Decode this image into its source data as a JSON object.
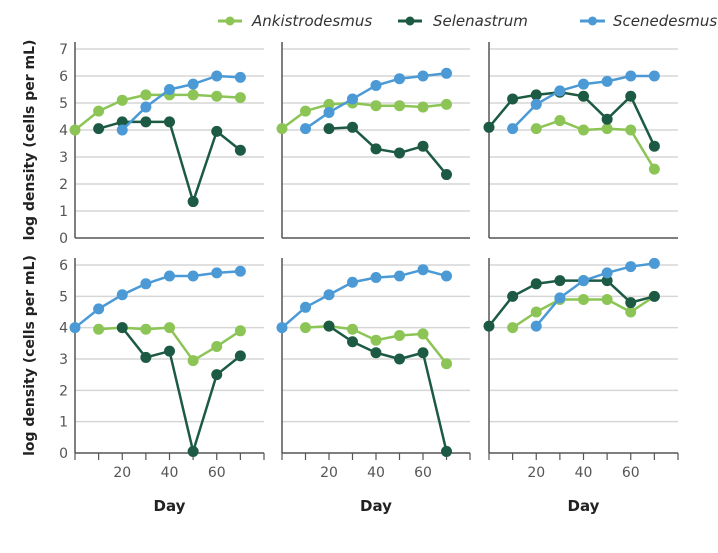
{
  "chart_data": {
    "type": "line",
    "layout": "2x3 small multiples",
    "legend": {
      "placement": "top",
      "entries": [
        "Ankistrodesmus",
        "Selenastrum",
        "Scenedesmus"
      ]
    },
    "colors": {
      "Ankistrodesmus": "#8cc556",
      "Selenastrum": "#1d5a44",
      "Scenedesmus": "#4b9ad5"
    },
    "xlabel": "Day",
    "ylabel": "log density (cells per mL)",
    "xlim": [
      0,
      80
    ],
    "xticks": [
      20,
      40,
      60
    ],
    "grid": "horizontal",
    "rows": [
      {
        "ylim": [
          0,
          7
        ],
        "yticks": [
          0,
          1,
          2,
          3,
          4,
          5,
          6,
          7
        ],
        "xlabel_shown": false
      },
      {
        "ylim": [
          0,
          6.2
        ],
        "yticks": [
          0,
          1,
          2,
          3,
          4,
          5,
          6
        ],
        "xlabel_shown": true
      }
    ],
    "panels": [
      {
        "row": 0,
        "col": 0,
        "series": [
          {
            "name": "Ankistrodesmus",
            "x": [
              0,
              10,
              20,
              30,
              40,
              50,
              60,
              70
            ],
            "y": [
              4.0,
              4.7,
              5.1,
              5.3,
              5.3,
              5.3,
              5.25,
              5.2
            ]
          },
          {
            "name": "Selenastrum",
            "x": [
              10,
              20,
              30,
              40,
              50,
              60,
              70
            ],
            "y": [
              4.05,
              4.3,
              4.3,
              4.3,
              1.35,
              3.95,
              3.25
            ]
          },
          {
            "name": "Scenedesmus",
            "x": [
              20,
              30,
              40,
              50,
              60,
              70
            ],
            "y": [
              4.0,
              4.85,
              5.5,
              5.7,
              6.0,
              5.95
            ]
          }
        ]
      },
      {
        "row": 0,
        "col": 1,
        "series": [
          {
            "name": "Ankistrodesmus",
            "x": [
              0,
              10,
              20,
              30,
              40,
              50,
              60,
              70
            ],
            "y": [
              4.05,
              4.7,
              4.95,
              5.0,
              4.9,
              4.9,
              4.85,
              4.95
            ]
          },
          {
            "name": "Selenastrum",
            "x": [
              20,
              30,
              40,
              50,
              60,
              70
            ],
            "y": [
              4.05,
              4.1,
              3.3,
              3.15,
              3.4,
              2.35
            ]
          },
          {
            "name": "Scenedesmus",
            "x": [
              10,
              20,
              30,
              40,
              50,
              60,
              70
            ],
            "y": [
              4.05,
              4.65,
              5.15,
              5.65,
              5.9,
              6.0,
              6.1
            ]
          }
        ]
      },
      {
        "row": 0,
        "col": 2,
        "series": [
          {
            "name": "Ankistrodesmus",
            "x": [
              20,
              30,
              40,
              50,
              60,
              70
            ],
            "y": [
              4.05,
              4.35,
              4.0,
              4.05,
              4.0,
              2.55
            ]
          },
          {
            "name": "Selenastrum",
            "x": [
              0,
              10,
              20,
              30,
              40,
              50,
              60,
              70
            ],
            "y": [
              4.1,
              5.15,
              5.3,
              5.4,
              5.25,
              4.4,
              5.25,
              3.4
            ]
          },
          {
            "name": "Scenedesmus",
            "x": [
              10,
              20,
              30,
              40,
              50,
              60,
              70
            ],
            "y": [
              4.05,
              4.95,
              5.45,
              5.7,
              5.8,
              6.0,
              6.0
            ]
          }
        ]
      },
      {
        "row": 1,
        "col": 0,
        "series": [
          {
            "name": "Ankistrodesmus",
            "x": [
              10,
              20,
              30,
              40,
              50,
              60,
              70
            ],
            "y": [
              3.95,
              4.0,
              3.95,
              4.0,
              2.95,
              3.4,
              3.9
            ]
          },
          {
            "name": "Selenastrum",
            "x": [
              20,
              30,
              40,
              50,
              60,
              70
            ],
            "y": [
              4.0,
              3.05,
              3.25,
              0.05,
              2.5,
              3.1
            ]
          },
          {
            "name": "Scenedesmus",
            "x": [
              0,
              10,
              20,
              30,
              40,
              50,
              60,
              70
            ],
            "y": [
              4.0,
              4.6,
              5.05,
              5.4,
              5.65,
              5.65,
              5.75,
              5.8
            ]
          }
        ]
      },
      {
        "row": 1,
        "col": 1,
        "series": [
          {
            "name": "Ankistrodesmus",
            "x": [
              10,
              20,
              30,
              40,
              50,
              60,
              70
            ],
            "y": [
              4.0,
              4.05,
              3.95,
              3.6,
              3.75,
              3.8,
              2.85
            ]
          },
          {
            "name": "Selenastrum",
            "x": [
              20,
              30,
              40,
              50,
              60,
              70
            ],
            "y": [
              4.05,
              3.55,
              3.2,
              3.0,
              3.2,
              0.05
            ]
          },
          {
            "name": "Scenedesmus",
            "x": [
              0,
              10,
              20,
              30,
              40,
              50,
              60,
              70
            ],
            "y": [
              4.0,
              4.65,
              5.05,
              5.45,
              5.6,
              5.65,
              5.85,
              5.65
            ]
          }
        ]
      },
      {
        "row": 1,
        "col": 2,
        "series": [
          {
            "name": "Ankistrodesmus",
            "x": [
              10,
              20,
              30,
              40,
              50,
              60,
              70
            ],
            "y": [
              4.0,
              4.5,
              4.9,
              4.9,
              4.9,
              4.5,
              5.0
            ]
          },
          {
            "name": "Selenastrum",
            "x": [
              0,
              10,
              20,
              30,
              40,
              50,
              60,
              70
            ],
            "y": [
              4.05,
              5.0,
              5.4,
              5.5,
              5.5,
              5.5,
              4.8,
              5.0
            ]
          },
          {
            "name": "Scenedesmus",
            "x": [
              20,
              30,
              40,
              50,
              60,
              70
            ],
            "y": [
              4.05,
              4.95,
              5.5,
              5.75,
              5.95,
              6.05
            ]
          }
        ]
      }
    ]
  }
}
